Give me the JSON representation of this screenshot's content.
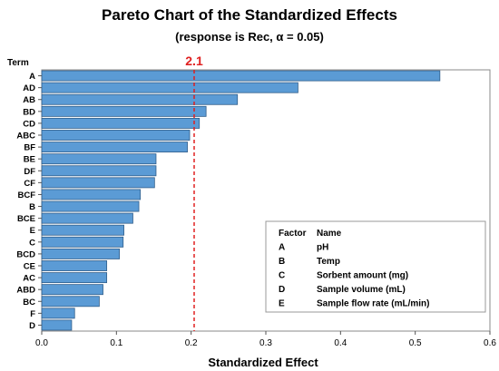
{
  "chart_data": {
    "type": "bar",
    "orientation": "horizontal",
    "title": "Pareto Chart of the Standardized Effects",
    "subtitle": "(response is Rec, α = 0.05)",
    "xlabel": "Standardized Effect",
    "ylabel": "Term",
    "xlim": [
      0,
      0.6
    ],
    "xticks": [
      "0.0",
      "0.1",
      "0.2",
      "0.3",
      "0.4",
      "0.5",
      "0.6"
    ],
    "categories": [
      "A",
      "AD",
      "AB",
      "BD",
      "CD",
      "ABC",
      "BF",
      "BE",
      "DF",
      "CF",
      "BCF",
      "B",
      "BCE",
      "E",
      "C",
      "BCD",
      "CE",
      "AC",
      "ABD",
      "BC",
      "F",
      "D"
    ],
    "values": [
      0.533,
      0.343,
      0.262,
      0.22,
      0.211,
      0.198,
      0.195,
      0.153,
      0.153,
      0.151,
      0.132,
      0.13,
      0.122,
      0.11,
      0.109,
      0.104,
      0.087,
      0.087,
      0.082,
      0.077,
      0.044,
      0.04
    ],
    "reference_line": {
      "value": 2.1,
      "label": "2.1",
      "color": "#e02020"
    },
    "bar_color": "#5b9bd5",
    "legend": {
      "placement": "bottom-right",
      "headers": [
        "Factor",
        "Name"
      ],
      "rows": [
        [
          "A",
          "pH"
        ],
        [
          "B",
          "Temp"
        ],
        [
          "C",
          "Sorbent amount (mg)"
        ],
        [
          "D",
          "Sample volume (mL)"
        ],
        [
          "E",
          "Sample flow rate (mL/min)"
        ]
      ]
    }
  }
}
